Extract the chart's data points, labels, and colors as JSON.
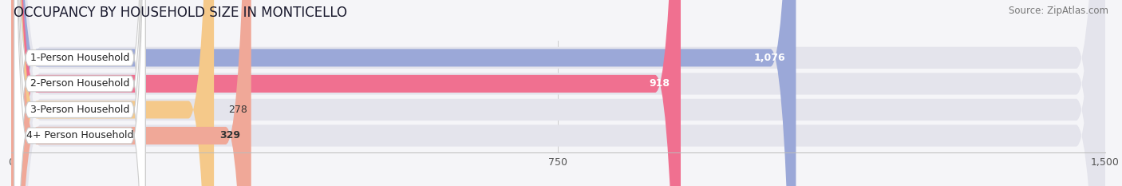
{
  "title": "OCCUPANCY BY HOUSEHOLD SIZE IN MONTICELLO",
  "source": "Source: ZipAtlas.com",
  "categories": [
    "1-Person Household",
    "2-Person Household",
    "3-Person Household",
    "4+ Person Household"
  ],
  "values": [
    1076,
    918,
    278,
    329
  ],
  "bar_colors": [
    "#9ba8d8",
    "#f07090",
    "#f5c98a",
    "#f0a898"
  ],
  "label_colors": [
    "white",
    "white",
    "#333333",
    "#333333"
  ],
  "xlim": [
    0,
    1500
  ],
  "xticks": [
    0,
    750,
    1500
  ],
  "background_color": "#f5f5f8",
  "bar_bg_color": "#e4e4ec",
  "title_fontsize": 12,
  "source_fontsize": 8.5,
  "bar_label_fontsize": 9,
  "category_fontsize": 9
}
